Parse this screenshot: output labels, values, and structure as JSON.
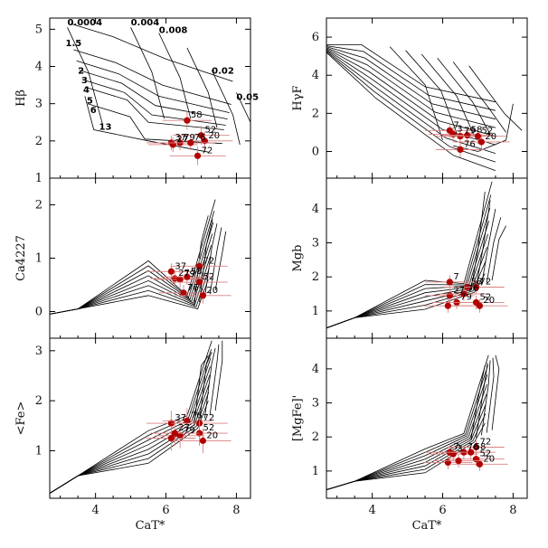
{
  "chart_data": [
    {
      "id": "hbeta",
      "type": "scatter",
      "ylabel": "Hβ",
      "xlabel": "",
      "xlim": [
        2.7,
        8.4
      ],
      "ylim": [
        1.0,
        5.3
      ],
      "xticks": [
        4,
        6,
        8
      ],
      "yticks": [
        1,
        2,
        3,
        4,
        5
      ],
      "xtick_labels_shown": false,
      "grid_labels": [
        {
          "text": "0.0004",
          "x": 3.2,
          "y": 5.1
        },
        {
          "text": "0.004",
          "x": 5.0,
          "y": 5.1
        },
        {
          "text": "0.008",
          "x": 5.8,
          "y": 4.9
        },
        {
          "text": "1.5",
          "x": 3.15,
          "y": 4.55
        },
        {
          "text": "2",
          "x": 3.5,
          "y": 3.8
        },
        {
          "text": "3",
          "x": 3.6,
          "y": 3.55
        },
        {
          "text": "4",
          "x": 3.65,
          "y": 3.3
        },
        {
          "text": "5",
          "x": 3.75,
          "y": 3.0
        },
        {
          "text": "6",
          "x": 3.85,
          "y": 2.75
        },
        {
          "text": "13",
          "x": 4.1,
          "y": 2.3
        },
        {
          "text": "0.02",
          "x": 7.3,
          "y": 3.8
        },
        {
          "text": "0.05",
          "x": 8.0,
          "y": 3.1
        }
      ],
      "points": [
        {
          "label": "58",
          "x": 6.6,
          "y": 2.55,
          "xerr": 0.7,
          "yerr": 0.25
        },
        {
          "label": "52",
          "x": 7.0,
          "y": 2.15,
          "xerr": 0.8,
          "yerr": 0.25
        },
        {
          "label": "20",
          "x": 7.1,
          "y": 2.0,
          "xerr": 0.8,
          "yerr": 0.25
        },
        {
          "label": "37",
          "x": 6.15,
          "y": 1.95,
          "xerr": 0.7,
          "yerr": 0.2
        },
        {
          "label": "27",
          "x": 6.2,
          "y": 1.9,
          "xerr": 0.7,
          "yerr": 0.2
        },
        {
          "label": "79",
          "x": 6.4,
          "y": 1.95,
          "xerr": 0.7,
          "yerr": 0.2
        },
        {
          "label": "76",
          "x": 6.7,
          "y": 1.95,
          "xerr": 0.7,
          "yerr": 0.2
        },
        {
          "label": "72",
          "x": 6.9,
          "y": 1.6,
          "xerr": 0.8,
          "yerr": 0.25
        }
      ]
    },
    {
      "id": "hgammaf",
      "type": "scatter",
      "ylabel": "HγF",
      "xlabel": "",
      "xlim": [
        2.7,
        8.4
      ],
      "ylim": [
        -1.4,
        7.0
      ],
      "xticks": [
        4,
        6,
        8
      ],
      "yticks": [
        0,
        2,
        4,
        6
      ],
      "xtick_labels_shown": false,
      "points": [
        {
          "label": "7",
          "x": 6.2,
          "y": 1.1,
          "xerr": 0.7,
          "yerr": 0.4
        },
        {
          "label": "3",
          "x": 6.3,
          "y": 0.9,
          "xerr": 0.7,
          "yerr": 0.4
        },
        {
          "label": "79",
          "x": 6.5,
          "y": 0.8,
          "xerr": 0.7,
          "yerr": 0.4
        },
        {
          "label": "58",
          "x": 6.7,
          "y": 0.85,
          "xerr": 0.7,
          "yerr": 0.4
        },
        {
          "label": "52",
          "x": 7.0,
          "y": 0.8,
          "xerr": 0.8,
          "yerr": 0.4
        },
        {
          "label": "20",
          "x": 7.1,
          "y": 0.5,
          "xerr": 0.8,
          "yerr": 0.4
        },
        {
          "label": "76",
          "x": 6.5,
          "y": 0.1,
          "xerr": 0.7,
          "yerr": 0.4
        }
      ]
    },
    {
      "id": "ca4227",
      "type": "scatter",
      "ylabel": "Ca4227",
      "xlabel": "",
      "xlim": [
        2.7,
        8.4
      ],
      "ylim": [
        -0.5,
        2.5
      ],
      "xticks": [
        4,
        6,
        8
      ],
      "yticks": [
        0,
        1,
        2
      ],
      "xtick_labels_shown": false,
      "points": [
        {
          "label": "37",
          "x": 6.15,
          "y": 0.75,
          "xerr": 0.7,
          "yerr": 0.15
        },
        {
          "label": "27",
          "x": 6.25,
          "y": 0.62,
          "xerr": 0.7,
          "yerr": 0.15
        },
        {
          "label": "79",
          "x": 6.4,
          "y": 0.6,
          "xerr": 0.7,
          "yerr": 0.15
        },
        {
          "label": "58",
          "x": 6.6,
          "y": 0.65,
          "xerr": 0.7,
          "yerr": 0.15
        },
        {
          "label": "72",
          "x": 6.95,
          "y": 0.85,
          "xerr": 0.8,
          "yerr": 0.15
        },
        {
          "label": "52",
          "x": 6.95,
          "y": 0.55,
          "xerr": 0.8,
          "yerr": 0.15
        },
        {
          "label": "76",
          "x": 6.5,
          "y": 0.35,
          "xerr": 0.7,
          "yerr": 0.15
        },
        {
          "label": "20",
          "x": 7.05,
          "y": 0.3,
          "xerr": 0.8,
          "yerr": 0.15
        }
      ]
    },
    {
      "id": "mgb",
      "type": "scatter",
      "ylabel": "Mgb",
      "xlabel": "",
      "xlim": [
        2.7,
        8.4
      ],
      "ylim": [
        0.2,
        4.9
      ],
      "xticks": [
        4,
        6,
        8
      ],
      "yticks": [
        1,
        2,
        3,
        4
      ],
      "xtick_labels_shown": false,
      "points": [
        {
          "label": "7",
          "x": 6.2,
          "y": 1.85,
          "xerr": 0.7,
          "yerr": 0.2
        },
        {
          "label": "58",
          "x": 6.7,
          "y": 1.7,
          "xerr": 0.7,
          "yerr": 0.2
        },
        {
          "label": "72",
          "x": 6.95,
          "y": 1.7,
          "xerr": 0.8,
          "yerr": 0.2
        },
        {
          "label": "27",
          "x": 6.2,
          "y": 1.45,
          "xerr": 0.7,
          "yerr": 0.2
        },
        {
          "label": "76",
          "x": 6.6,
          "y": 1.5,
          "xerr": 0.7,
          "yerr": 0.2
        },
        {
          "label": "79",
          "x": 6.4,
          "y": 1.25,
          "xerr": 0.7,
          "yerr": 0.2
        },
        {
          "label": "52",
          "x": 6.95,
          "y": 1.25,
          "xerr": 0.8,
          "yerr": 0.2
        },
        {
          "label": "20",
          "x": 7.05,
          "y": 1.15,
          "xerr": 0.8,
          "yerr": 0.2
        },
        {
          "label": "",
          "x": 6.15,
          "y": 1.15,
          "xerr": 0.7,
          "yerr": 0.2
        }
      ]
    },
    {
      "id": "fe",
      "type": "scatter",
      "ylabel": "<Fe>",
      "xlabel": "CaT*",
      "xlim": [
        2.7,
        8.4
      ],
      "ylim": [
        0.05,
        3.25
      ],
      "xticks": [
        4,
        6,
        8
      ],
      "yticks": [
        1,
        2,
        3
      ],
      "xtick_labels_shown": true,
      "points": [
        {
          "label": "37",
          "x": 6.15,
          "y": 1.55,
          "xerr": 0.7,
          "yerr": 0.25
        },
        {
          "label": "76",
          "x": 6.6,
          "y": 1.6,
          "xerr": 0.7,
          "yerr": 0.25
        },
        {
          "label": "72",
          "x": 6.95,
          "y": 1.55,
          "xerr": 0.8,
          "yerr": 0.25
        },
        {
          "label": "52",
          "x": 6.95,
          "y": 1.35,
          "xerr": 0.8,
          "yerr": 0.25
        },
        {
          "label": "79",
          "x": 6.4,
          "y": 1.3,
          "xerr": 0.7,
          "yerr": 0.25
        },
        {
          "label": "27",
          "x": 6.25,
          "y": 1.35,
          "xerr": 0.7,
          "yerr": 0.25
        },
        {
          "label": "20",
          "x": 7.05,
          "y": 1.2,
          "xerr": 0.8,
          "yerr": 0.25
        },
        {
          "label": "",
          "x": 6.15,
          "y": 1.25,
          "xerr": 0.7,
          "yerr": 0.25
        }
      ]
    },
    {
      "id": "mgfe",
      "type": "scatter",
      "ylabel": "[MgFe]'",
      "xlabel": "CaT*",
      "xlim": [
        2.7,
        8.4
      ],
      "ylim": [
        0.2,
        4.9
      ],
      "xticks": [
        4,
        6,
        8
      ],
      "yticks": [
        1,
        2,
        3,
        4
      ],
      "xtick_labels_shown": true,
      "points": [
        {
          "label": "72",
          "x": 6.95,
          "y": 1.7,
          "xerr": 0.8,
          "yerr": 0.2
        },
        {
          "label": "3",
          "x": 6.3,
          "y": 1.5,
          "xerr": 0.7,
          "yerr": 0.2
        },
        {
          "label": "7",
          "x": 6.2,
          "y": 1.55,
          "xerr": 0.7,
          "yerr": 0.2
        },
        {
          "label": "76",
          "x": 6.6,
          "y": 1.55,
          "xerr": 0.7,
          "yerr": 0.2
        },
        {
          "label": "58",
          "x": 6.8,
          "y": 1.55,
          "xerr": 0.7,
          "yerr": 0.2
        },
        {
          "label": "52",
          "x": 6.95,
          "y": 1.35,
          "xerr": 0.8,
          "yerr": 0.2
        },
        {
          "label": "20",
          "x": 7.05,
          "y": 1.2,
          "xerr": 0.8,
          "yerr": 0.2
        },
        {
          "label": "",
          "x": 6.15,
          "y": 1.25,
          "xerr": 0.7,
          "yerr": 0.2
        },
        {
          "label": "",
          "x": 6.45,
          "y": 1.3,
          "xerr": 0.7,
          "yerr": 0.2
        }
      ]
    }
  ],
  "colors": {
    "point": "#b30000",
    "error_bar": "#d88080",
    "grid_line": "#000000",
    "axis": "#000000"
  }
}
